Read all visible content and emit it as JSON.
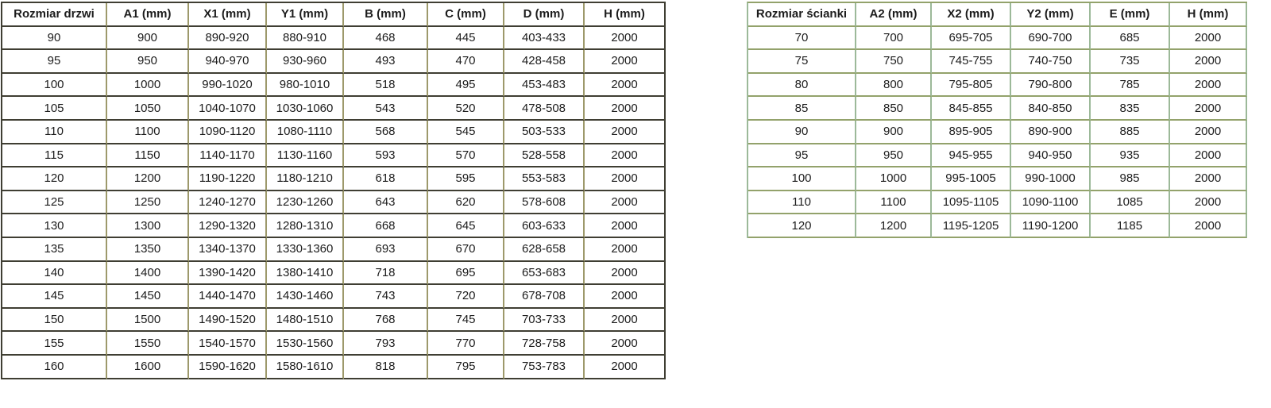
{
  "colors": {
    "left_table_border_horizontal": "#3f3e33",
    "left_table_border_vertical": "#9d996b",
    "right_table_border_horizontal": "#93a26b",
    "right_table_border_vertical": "#9cb999",
    "text": "#1c1c1c",
    "background": "#ffffff"
  },
  "door_size_table": {
    "headers": [
      "Rozmiar drzwi",
      "A1 (mm)",
      "X1 (mm)",
      "Y1 (mm)",
      "B (mm)",
      "C (mm)",
      "D (mm)",
      "H (mm)"
    ],
    "rows": [
      [
        "90",
        "900",
        "890-920",
        "880-910",
        "468",
        "445",
        "403-433",
        "2000"
      ],
      [
        "95",
        "950",
        "940-970",
        "930-960",
        "493",
        "470",
        "428-458",
        "2000"
      ],
      [
        "100",
        "1000",
        "990-1020",
        "980-1010",
        "518",
        "495",
        "453-483",
        "2000"
      ],
      [
        "105",
        "1050",
        "1040-1070",
        "1030-1060",
        "543",
        "520",
        "478-508",
        "2000"
      ],
      [
        "110",
        "1100",
        "1090-1120",
        "1080-1110",
        "568",
        "545",
        "503-533",
        "2000"
      ],
      [
        "115",
        "1150",
        "1140-1170",
        "1130-1160",
        "593",
        "570",
        "528-558",
        "2000"
      ],
      [
        "120",
        "1200",
        "1190-1220",
        "1180-1210",
        "618",
        "595",
        "553-583",
        "2000"
      ],
      [
        "125",
        "1250",
        "1240-1270",
        "1230-1260",
        "643",
        "620",
        "578-608",
        "2000"
      ],
      [
        "130",
        "1300",
        "1290-1320",
        "1280-1310",
        "668",
        "645",
        "603-633",
        "2000"
      ],
      [
        "135",
        "1350",
        "1340-1370",
        "1330-1360",
        "693",
        "670",
        "628-658",
        "2000"
      ],
      [
        "140",
        "1400",
        "1390-1420",
        "1380-1410",
        "718",
        "695",
        "653-683",
        "2000"
      ],
      [
        "145",
        "1450",
        "1440-1470",
        "1430-1460",
        "743",
        "720",
        "678-708",
        "2000"
      ],
      [
        "150",
        "1500",
        "1490-1520",
        "1480-1510",
        "768",
        "745",
        "703-733",
        "2000"
      ],
      [
        "155",
        "1550",
        "1540-1570",
        "1530-1560",
        "793",
        "770",
        "728-758",
        "2000"
      ],
      [
        "160",
        "1600",
        "1590-1620",
        "1580-1610",
        "818",
        "795",
        "753-783",
        "2000"
      ]
    ]
  },
  "wall_size_table": {
    "headers": [
      "Rozmiar ścianki",
      "A2 (mm)",
      "X2 (mm)",
      "Y2 (mm)",
      "E (mm)",
      "H (mm)"
    ],
    "rows": [
      [
        "70",
        "700",
        "695-705",
        "690-700",
        "685",
        "2000"
      ],
      [
        "75",
        "750",
        "745-755",
        "740-750",
        "735",
        "2000"
      ],
      [
        "80",
        "800",
        "795-805",
        "790-800",
        "785",
        "2000"
      ],
      [
        "85",
        "850",
        "845-855",
        "840-850",
        "835",
        "2000"
      ],
      [
        "90",
        "900",
        "895-905",
        "890-900",
        "885",
        "2000"
      ],
      [
        "95",
        "950",
        "945-955",
        "940-950",
        "935",
        "2000"
      ],
      [
        "100",
        "1000",
        "995-1005",
        "990-1000",
        "985",
        "2000"
      ],
      [
        "110",
        "1100",
        "1095-1105",
        "1090-1100",
        "1085",
        "2000"
      ],
      [
        "120",
        "1200",
        "1195-1205",
        "1190-1200",
        "1185",
        "2000"
      ]
    ]
  }
}
